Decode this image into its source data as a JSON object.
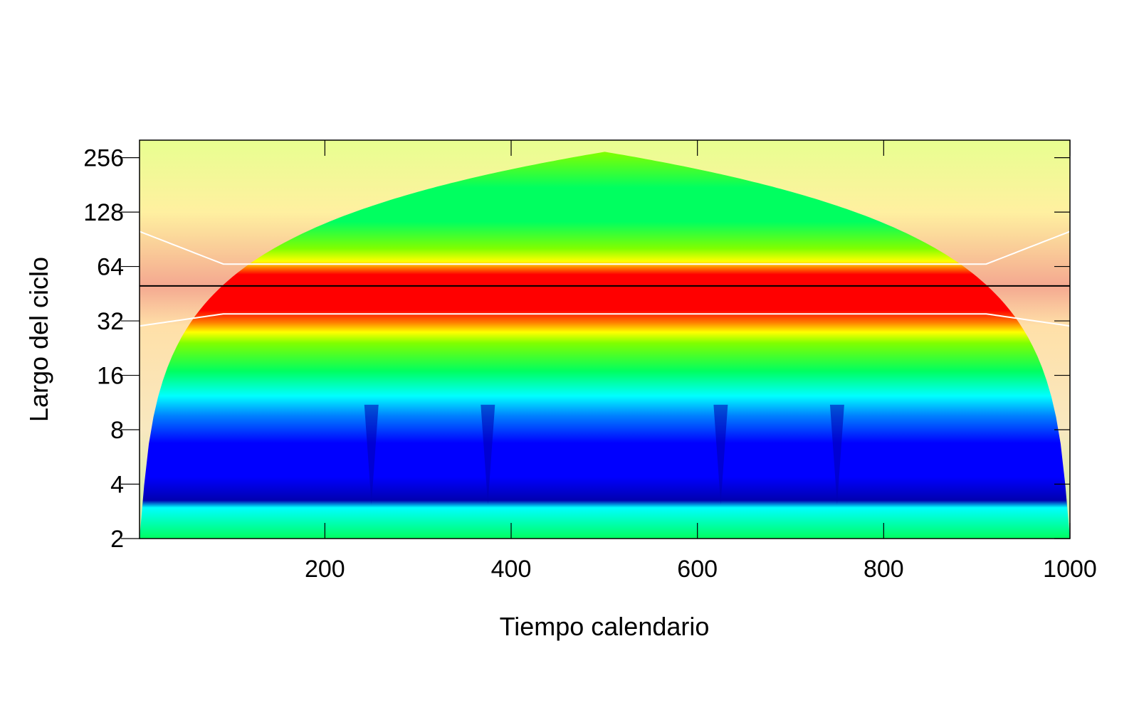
{
  "chart_data": {
    "type": "heatmap",
    "xlabel": "Tiempo calendario",
    "ylabel": "Largo del ciclo",
    "x_range": [
      1,
      1000
    ],
    "y_range": [
      2,
      320
    ],
    "y_scale": "log2",
    "x_ticks": [
      200,
      400,
      600,
      800,
      1000
    ],
    "x_tick_labels": [
      "200",
      "400",
      "600",
      "800",
      "1000"
    ],
    "y_ticks": [
      2,
      4,
      8,
      16,
      32,
      64,
      128,
      256
    ],
    "y_tick_labels": [
      "2",
      "4",
      "8",
      "16",
      "32",
      "64",
      "128",
      "256"
    ],
    "colormap": [
      "#0000b0",
      "#0000ff",
      "#0080ff",
      "#00ffff",
      "#00ff60",
      "#80ff00",
      "#ffff00",
      "#ff8000",
      "#ff0000"
    ],
    "power_ridge": {
      "period": 50,
      "period_range": [
        35,
        66
      ]
    },
    "ridge_line_color": "#000000",
    "significance_contour_color": "#ffffff",
    "cone_of_influence_shade": "#fff3c4",
    "local_minima_times": [
      250,
      375,
      625,
      750
    ],
    "grid": false
  }
}
